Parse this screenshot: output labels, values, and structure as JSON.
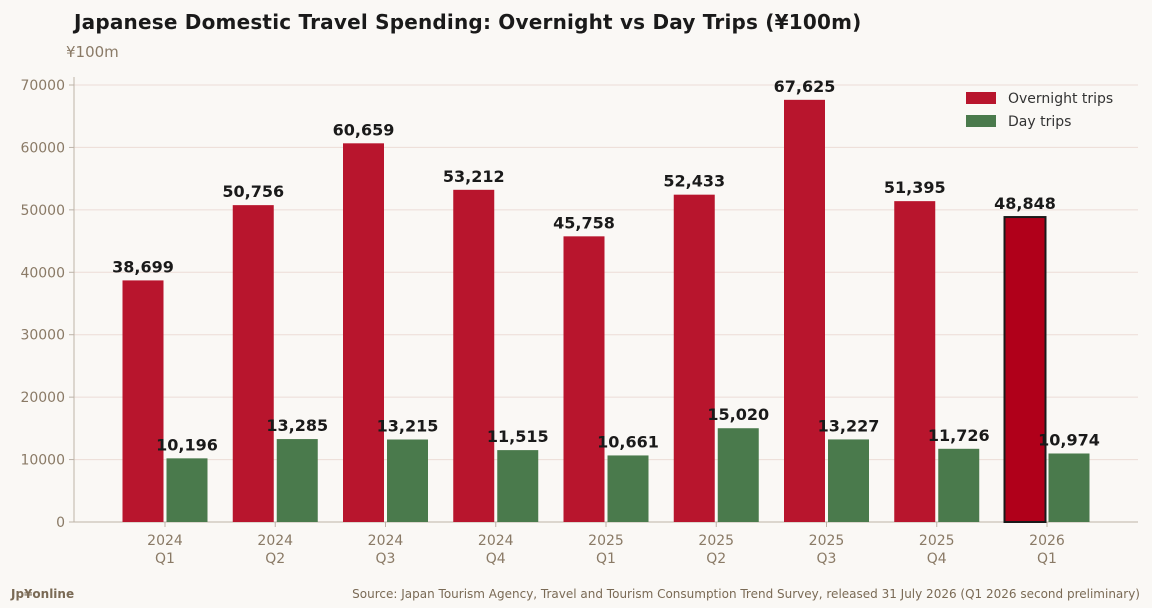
{
  "chart_data": {
    "type": "bar",
    "title": "Japanese Domestic Travel Spending: Overnight vs Day Trips (¥100m)",
    "unit_label": "¥100m",
    "categories": [
      "2024\nQ1",
      "2024\nQ2",
      "2024\nQ3",
      "2024\nQ4",
      "2025\nQ1",
      "2025\nQ2",
      "2025\nQ3",
      "2025\nQ4",
      "2026\nQ1"
    ],
    "series": [
      {
        "name": "Overnight trips",
        "color": "#b8152d",
        "values": [
          38699,
          50756,
          60659,
          53212,
          45758,
          52433,
          67625,
          51395,
          48848
        ],
        "labels": [
          "38,699",
          "50,756",
          "60,659",
          "53,212",
          "45,758",
          "52,433",
          "67,625",
          "51,395",
          "48,848"
        ]
      },
      {
        "name": "Day trips",
        "color": "#4a7a4c",
        "values": [
          10196,
          13285,
          13215,
          11515,
          10661,
          15020,
          13227,
          11726,
          10974
        ],
        "labels": [
          "10,196",
          "13,285",
          "13,215",
          "11,515",
          "10,661",
          "15,020",
          "13,227",
          "11,726",
          "10,974"
        ]
      }
    ],
    "highlight": {
      "series": 0,
      "index": 8,
      "color": "#b0001a",
      "outline": "#1a1a1a"
    },
    "ylim": [
      0,
      70000
    ],
    "yticks": [
      0,
      10000,
      20000,
      30000,
      40000,
      50000,
      60000,
      70000
    ],
    "grid": true,
    "legend_position": "top-right"
  },
  "footer": {
    "brand": "Jp¥online",
    "source": "Source: Japan Tourism Agency, Travel and Tourism Consumption Trend Survey, released 31 July 2026 (Q1 2026 second preliminary)"
  }
}
